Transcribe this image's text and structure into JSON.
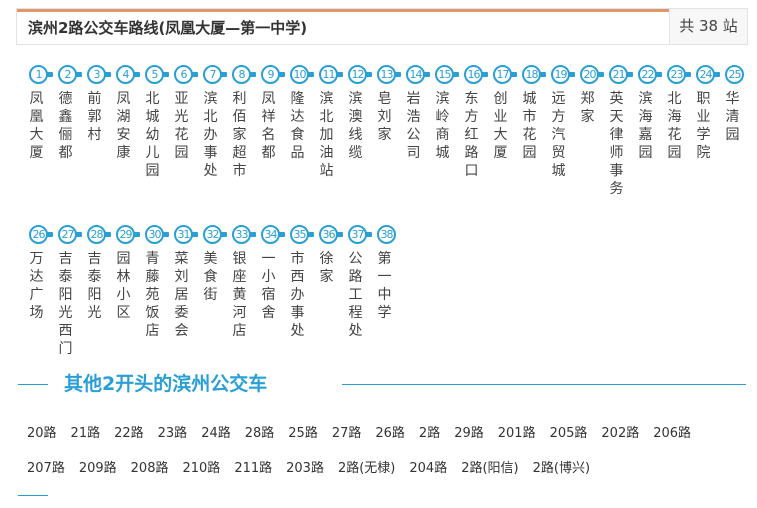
{
  "header": {
    "title": "滨州2路公交车路线(凤凰大厦—第一中学)",
    "count": "共 38 站"
  },
  "stations": [
    "凤凰大厦",
    "德鑫俪都",
    "前郭村",
    "凤湖安康",
    "北城幼儿园",
    "亚光花园",
    "滨北办事处",
    "利佰家超市",
    "凤祥名都",
    "隆达食品",
    "滨北加油站",
    "滨澳线缆",
    "皂刘家",
    "岩浩公司",
    "滨岭商城",
    "东方红路口",
    "创业大厦",
    "城市花园",
    "远方汽贸城",
    "郑家",
    "英天律师事务",
    "滨海嘉园",
    "北海花园",
    "职业学院",
    "华清园",
    "万达广场",
    "吉泰阳光西门",
    "吉泰阳光",
    "园林小区",
    "青藤苑饭店",
    "菜刘居委会",
    "美食街",
    "银座黄河店",
    "一小宿舍",
    "市西办事处",
    "徐家",
    "公路工程处",
    "第一中学"
  ],
  "other": {
    "title": "其他2开头的滨州公交车",
    "routes_row1": [
      "20路",
      "21路",
      "22路",
      "23路",
      "24路",
      "28路",
      "25路",
      "27路",
      "26路",
      "2路",
      "29路",
      "201路",
      "205路",
      "202路",
      "206路"
    ],
    "routes_row2": [
      "207路",
      "209路",
      "208路",
      "210路",
      "211路",
      "203路",
      "2路(无棣)",
      "204路",
      "2路(阳信)",
      "2路(博兴)"
    ]
  },
  "colors": {
    "accent": "#2a9fd6",
    "header_border": "#e0956a"
  }
}
